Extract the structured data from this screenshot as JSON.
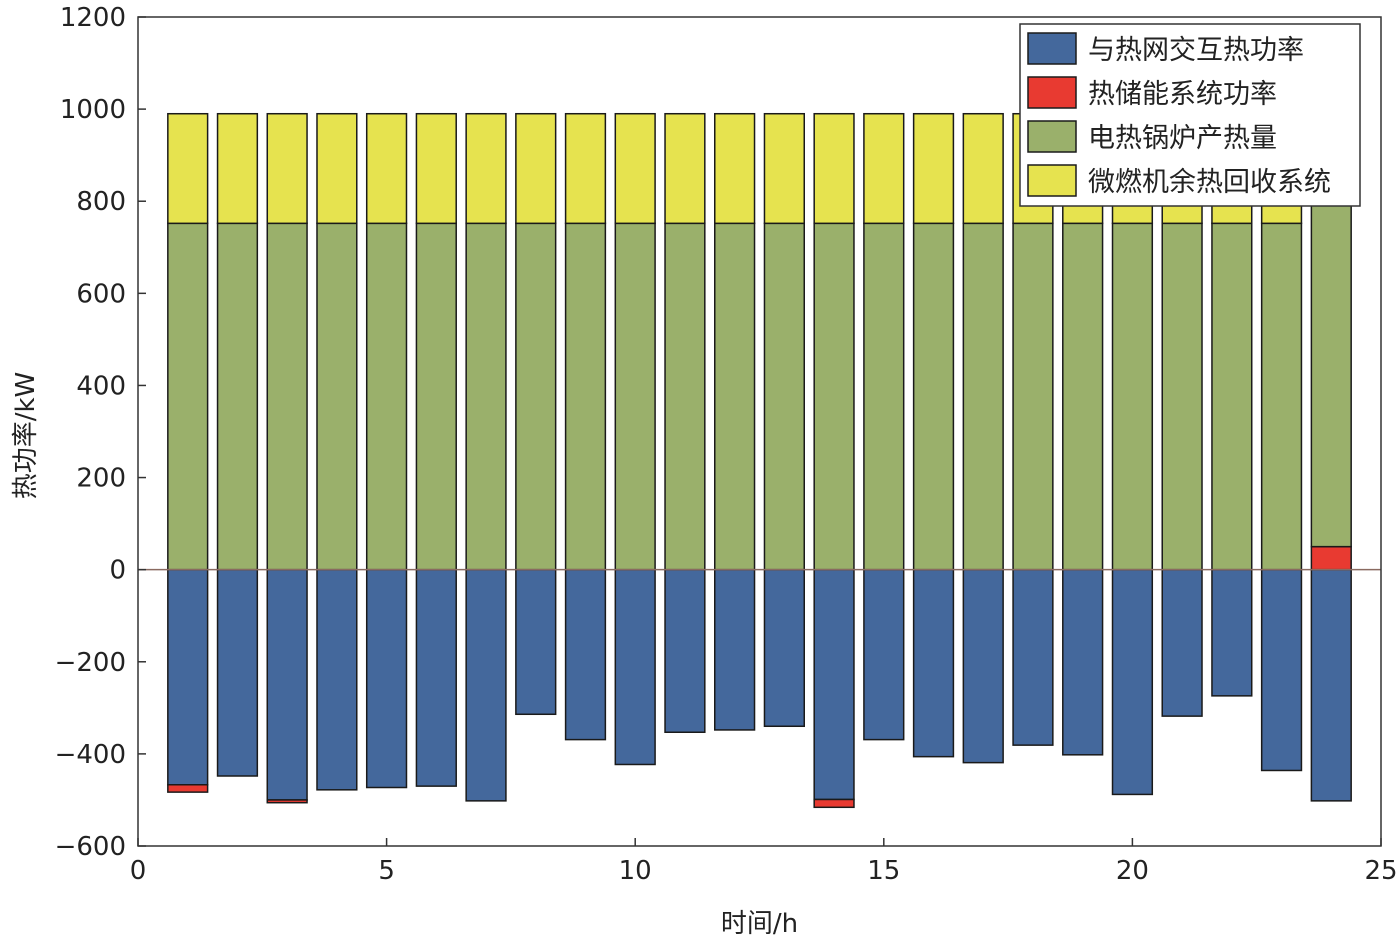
{
  "chart_data": {
    "type": "bar",
    "stacked": true,
    "xlabel": "时间/h",
    "ylabel": "热功率/kW",
    "xlim": [
      0,
      25
    ],
    "ylim": [
      -600,
      1200
    ],
    "x_ticks": [
      "0",
      "5",
      "10",
      "15",
      "20",
      "25"
    ],
    "x_tick_values": [
      0,
      5,
      10,
      15,
      20,
      25
    ],
    "y_ticks": [
      "1200",
      "1000",
      "800",
      "600",
      "400",
      "200",
      "0",
      "−200",
      "−400",
      "−600"
    ],
    "y_tick_values": [
      1200,
      1000,
      800,
      600,
      400,
      200,
      0,
      -200,
      -400,
      -600
    ],
    "legend_position": "top-right",
    "grid": false,
    "x": [
      1,
      2,
      3,
      4,
      5,
      6,
      7,
      8,
      9,
      10,
      11,
      12,
      13,
      14,
      15,
      16,
      17,
      18,
      19,
      20,
      21,
      22,
      23,
      24
    ],
    "series": [
      {
        "name": "与热网交互热功率",
        "color": "#44689c",
        "values": [
          -467,
          -448,
          -500,
          -478,
          -473,
          -470,
          -502,
          -314,
          -369,
          -423,
          -353,
          -348,
          -340,
          -499,
          -369,
          -406,
          -419,
          -381,
          -402,
          -488,
          -318,
          -274,
          -436,
          -502
        ]
      },
      {
        "name": "热储能系统功率",
        "color": "#e83a31",
        "values": [
          -16,
          0,
          -6,
          0,
          0,
          0,
          0,
          0,
          0,
          0,
          0,
          0,
          0,
          -17,
          0,
          0,
          0,
          0,
          0,
          0,
          0,
          0,
          0,
          50
        ]
      },
      {
        "name": "电热锅炉产热量",
        "color": "#9ab06b",
        "values": [
          752,
          752,
          752,
          752,
          752,
          752,
          752,
          752,
          752,
          752,
          752,
          752,
          752,
          752,
          752,
          752,
          752,
          752,
          752,
          752,
          752,
          752,
          752,
          750
        ]
      },
      {
        "name": "微燃机余热回收系统",
        "color": "#e6e34f",
        "values": [
          238,
          238,
          238,
          238,
          238,
          238,
          238,
          238,
          238,
          238,
          238,
          238,
          238,
          238,
          238,
          238,
          238,
          238,
          238,
          238,
          238,
          238,
          238,
          190
        ]
      }
    ]
  }
}
